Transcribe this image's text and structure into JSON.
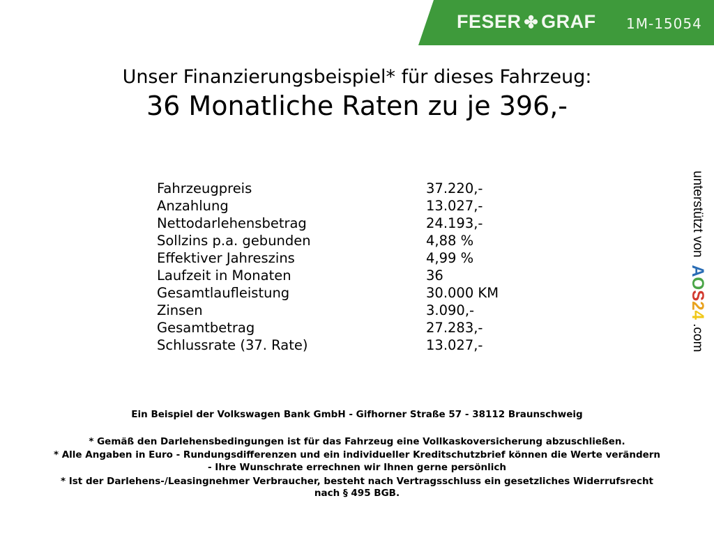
{
  "header": {
    "brand": "FESER",
    "brand2": "GRAF",
    "clover_icon": "clover-icon",
    "vehicle_code": "1M-15054",
    "color": "#3e9a3b"
  },
  "title": "Unser Finanzierungsbeispiel* für dieses Fahrzeug:",
  "subtitle": "36 Monatliche Raten zu je 396,-",
  "rows": [
    {
      "label": "Fahrzeugpreis",
      "value": "37.220,-"
    },
    {
      "label": "Anzahlung",
      "value": "13.027,-"
    },
    {
      "label": "Nettodarlehensbetrag",
      "value": "24.193,-"
    },
    {
      "label": "Sollzins p.a. gebunden",
      "value": "4,88 %"
    },
    {
      "label": "Effektiver Jahreszins",
      "value": "4,99 %"
    },
    {
      "label": "Laufzeit in Monaten",
      "value": "36"
    },
    {
      "label": "Gesamtlaufleistung",
      "value": "30.000 KM"
    },
    {
      "label": "Zinsen",
      "value": "3.090,-"
    },
    {
      "label": "Gesamtbetrag",
      "value": "27.283,-"
    },
    {
      "label": "Schlussrate (37. Rate)",
      "value": "13.027,-"
    }
  ],
  "side": {
    "text": "unterstützt von",
    "logo_a": "A",
    "logo_o": "O",
    "logo_s": "S",
    "logo_2": "2",
    "logo_4": "4",
    "suffix": ".com"
  },
  "footer": {
    "bank": "Ein Beispiel der Volkswagen Bank GmbH - Gifhorner Straße 57 - 38112 Braunschweig",
    "note1": "* Gemäß den Darlehensbedingungen ist für das Fahrzeug eine Vollkaskoversicherung abzuschließen.",
    "note2a": "* Alle Angaben in Euro - Rundungsdifferenzen und ein individueller Kreditschutzbrief können die Werte verändern",
    "note2b": "- Ihre Wunschrate errechnen wir Ihnen gerne persönlich",
    "note3a": "* Ist der Darlehens-/Leasingnehmer Verbraucher, besteht nach Vertragsschluss ein gesetzliches Widerrufsrecht",
    "note3b": "nach § 495 BGB."
  }
}
